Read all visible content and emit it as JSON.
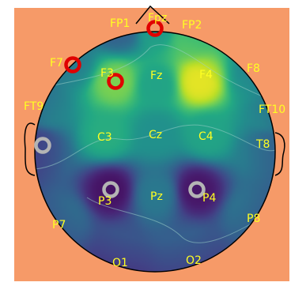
{
  "colors": {
    "background": "#F69A68",
    "head_outline": "#000000",
    "label": "#FFFF22",
    "highlight_ring": "#E00000",
    "neutral_ring": "#B4B4B4",
    "contour": "#9AD0C8",
    "colormap": "viridis"
  },
  "electrodes": [
    {
      "label": "FP1",
      "value": 0.4,
      "marker": "none"
    },
    {
      "label": "Fpz",
      "value": 0.62,
      "marker": "red-ring"
    },
    {
      "label": "FP2",
      "value": 0.78,
      "marker": "none"
    },
    {
      "label": "F7",
      "value": 0.5,
      "marker": "red-ring"
    },
    {
      "label": "F3",
      "value": 0.8,
      "marker": "red-ring"
    },
    {
      "label": "Fz",
      "value": 0.58,
      "marker": "none"
    },
    {
      "label": "F4",
      "value": 0.96,
      "marker": "none"
    },
    {
      "label": "F8",
      "value": 0.55,
      "marker": "none"
    },
    {
      "label": "FT9",
      "value": 0.48,
      "marker": "none"
    },
    {
      "label": "FT10",
      "value": 0.5,
      "marker": "none"
    },
    {
      "label": "C3",
      "value": 0.62,
      "marker": "none"
    },
    {
      "label": "Cz",
      "value": 0.5,
      "marker": "none"
    },
    {
      "label": "C4",
      "value": 0.58,
      "marker": "none"
    },
    {
      "label": "T8",
      "value": 0.4,
      "marker": "none"
    },
    {
      "label": "",
      "value": 0.28,
      "marker": "grey-ring"
    },
    {
      "label": "P3",
      "value": 0.05,
      "marker": "grey-ring"
    },
    {
      "label": "Pz",
      "value": 0.4,
      "marker": "none"
    },
    {
      "label": "P4",
      "value": 0.06,
      "marker": "grey-ring"
    },
    {
      "label": "P7",
      "value": 0.38,
      "marker": "none"
    },
    {
      "label": "P8",
      "value": 0.4,
      "marker": "none"
    },
    {
      "label": "O1",
      "value": 0.26,
      "marker": "none"
    },
    {
      "label": "O2",
      "value": 0.3,
      "marker": "none"
    }
  ]
}
